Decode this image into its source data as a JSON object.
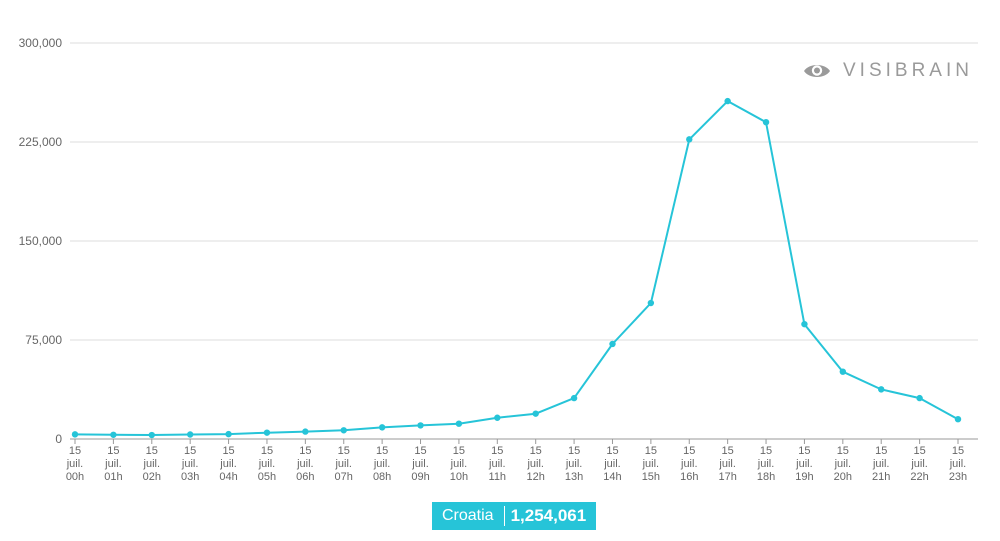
{
  "brand": {
    "logo_text": "VISIBRAIN",
    "logo_icon": "eye-icon"
  },
  "chart_data": {
    "type": "line",
    "y_ticks": [
      "0",
      "75,000",
      "150,000",
      "225,000",
      "300,000"
    ],
    "ylim": [
      0,
      300000
    ],
    "grid": true,
    "categories": [
      [
        "15",
        "juil.",
        "00h"
      ],
      [
        "15",
        "juil.",
        "01h"
      ],
      [
        "15",
        "juil.",
        "02h"
      ],
      [
        "15",
        "juil.",
        "03h"
      ],
      [
        "15",
        "juil.",
        "04h"
      ],
      [
        "15",
        "juil.",
        "05h"
      ],
      [
        "15",
        "juil.",
        "06h"
      ],
      [
        "15",
        "juil.",
        "07h"
      ],
      [
        "15",
        "juil.",
        "08h"
      ],
      [
        "15",
        "juil.",
        "09h"
      ],
      [
        "15",
        "juil.",
        "10h"
      ],
      [
        "15",
        "juil.",
        "11h"
      ],
      [
        "15",
        "juil.",
        "12h"
      ],
      [
        "15",
        "juil.",
        "13h"
      ],
      [
        "15",
        "juil.",
        "14h"
      ],
      [
        "15",
        "juil.",
        "15h"
      ],
      [
        "15",
        "juil.",
        "16h"
      ],
      [
        "15",
        "juil.",
        "17h"
      ],
      [
        "15",
        "juil.",
        "18h"
      ],
      [
        "15",
        "juil.",
        "19h"
      ],
      [
        "15",
        "juil.",
        "20h"
      ],
      [
        "15",
        "juil.",
        "21h"
      ],
      [
        "15",
        "juil.",
        "22h"
      ],
      [
        "15",
        "juil.",
        "23h"
      ]
    ],
    "series": [
      {
        "name": "Croatia",
        "color": "#26c4d8",
        "values": [
          3500,
          3200,
          3000,
          3400,
          3700,
          4800,
          5600,
          6600,
          8800,
          10300,
          11600,
          16100,
          19200,
          31000,
          72000,
          103000,
          227000,
          256000,
          240000,
          87000,
          51000,
          37600,
          31000,
          15000
        ]
      }
    ],
    "legend": {
      "position": "bottom-center",
      "label": "Croatia",
      "total": "1,254,061"
    }
  }
}
